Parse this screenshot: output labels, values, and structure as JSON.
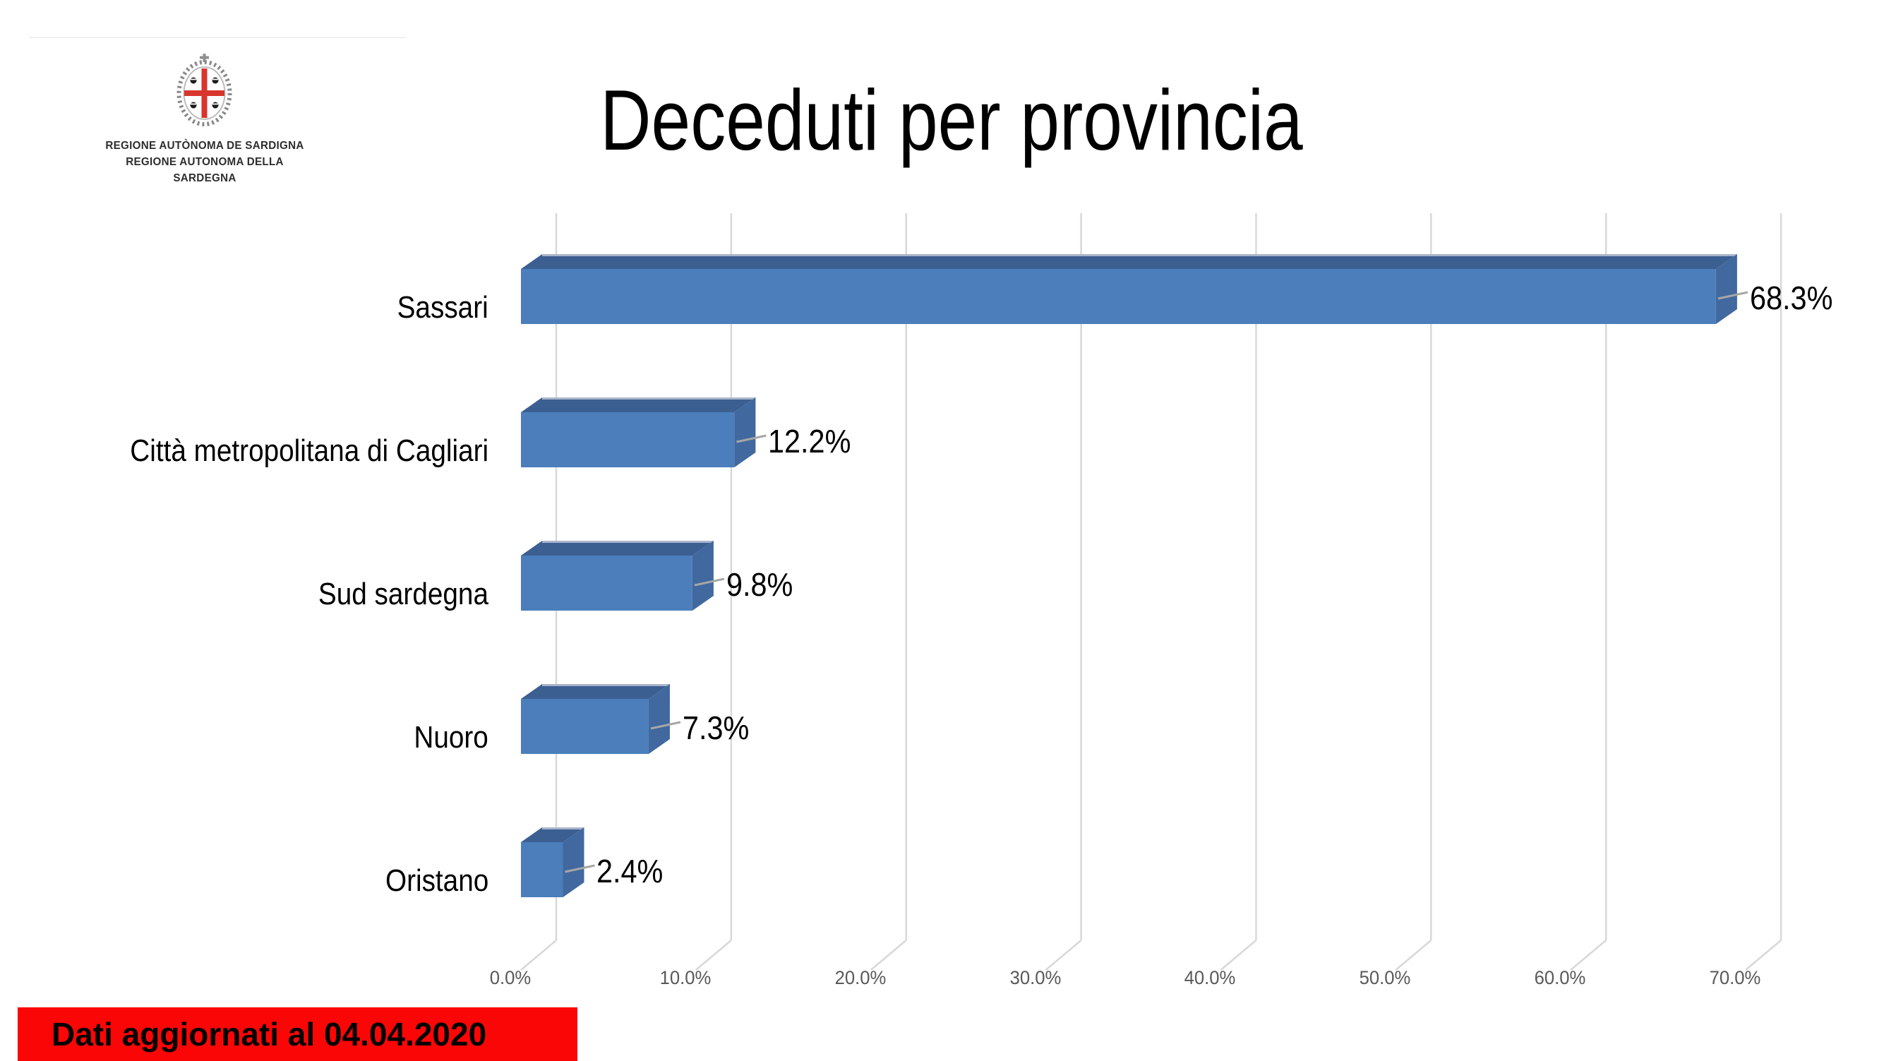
{
  "logo": {
    "line1": "REGIONE AUTÒNOMA DE SARDIGNA",
    "line2": "REGIONE AUTONOMA DELLA SARDEGNA"
  },
  "chart_data": {
    "type": "bar",
    "orientation": "horizontal",
    "style": "3d",
    "title": "Deceduti per provincia",
    "categories": [
      "Sassari",
      "Città metropolitana di Cagliari",
      "Sud sardegna",
      "Nuoro",
      "Oristano"
    ],
    "values": [
      68.3,
      12.2,
      9.8,
      7.3,
      2.4
    ],
    "value_labels": [
      "68.3%",
      "12.2%",
      "9.8%",
      "7.3%",
      "2.4%"
    ],
    "x_ticks": [
      {
        "label": "0.0%",
        "value": 0
      },
      {
        "label": "10.0%",
        "value": 10
      },
      {
        "label": "20.0%",
        "value": 20
      },
      {
        "label": "30.0%",
        "value": 30
      },
      {
        "label": "40.0%",
        "value": 40
      },
      {
        "label": "50.0%",
        "value": 50
      },
      {
        "label": "60.0%",
        "value": 60
      },
      {
        "label": "70.0%",
        "value": 70
      }
    ],
    "xlim": [
      0,
      73
    ],
    "grid": true,
    "legend": false,
    "colors": {
      "bar_front": "#4B7EBB",
      "bar_top": "#3C5F92",
      "bar_side": "#41689F",
      "bar_top_highlight": "#A9B4CA",
      "gridline": "#D8D8D8",
      "leader_line": "#A6A6A6",
      "axis_text": "#595959",
      "label_text": "#000000"
    }
  },
  "footer": {
    "banner_text": "Dati aggiornati al 04.04.2020",
    "banner_color": "#FA0606",
    "banner_text_color": "#000000"
  }
}
